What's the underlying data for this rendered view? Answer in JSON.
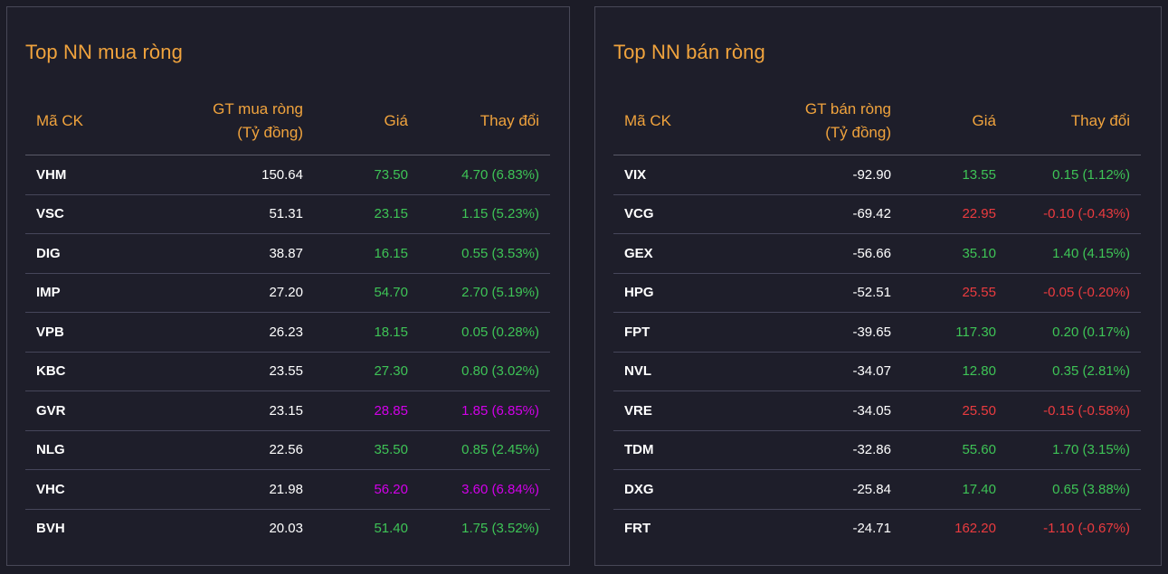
{
  "colors": {
    "up": "#3ec456",
    "down": "#eb3b3f",
    "ceiling": "#d200e9",
    "accent": "#f0a33d"
  },
  "buy": {
    "title": "Top NN mua ròng",
    "headers": {
      "code": "Mã CK",
      "value_line1": "GT mua ròng",
      "value_line2": "(Tỷ đồng)",
      "price": "Giá",
      "change": "Thay đổi"
    },
    "rows": [
      {
        "code": "VHM",
        "value": "150.64",
        "price": "73.50",
        "change": "4.70 (6.83%)",
        "trend": "up"
      },
      {
        "code": "VSC",
        "value": "51.31",
        "price": "23.15",
        "change": "1.15 (5.23%)",
        "trend": "up"
      },
      {
        "code": "DIG",
        "value": "38.87",
        "price": "16.15",
        "change": "0.55 (3.53%)",
        "trend": "up"
      },
      {
        "code": "IMP",
        "value": "27.20",
        "price": "54.70",
        "change": "2.70 (5.19%)",
        "trend": "up"
      },
      {
        "code": "VPB",
        "value": "26.23",
        "price": "18.15",
        "change": "0.05 (0.28%)",
        "trend": "up"
      },
      {
        "code": "KBC",
        "value": "23.55",
        "price": "27.30",
        "change": "0.80 (3.02%)",
        "trend": "up"
      },
      {
        "code": "GVR",
        "value": "23.15",
        "price": "28.85",
        "change": "1.85 (6.85%)",
        "trend": "ceil"
      },
      {
        "code": "NLG",
        "value": "22.56",
        "price": "35.50",
        "change": "0.85 (2.45%)",
        "trend": "up"
      },
      {
        "code": "VHC",
        "value": "21.98",
        "price": "56.20",
        "change": "3.60 (6.84%)",
        "trend": "ceil"
      },
      {
        "code": "BVH",
        "value": "20.03",
        "price": "51.40",
        "change": "1.75 (3.52%)",
        "trend": "up"
      }
    ]
  },
  "sell": {
    "title": "Top NN bán ròng",
    "headers": {
      "code": "Mã CK",
      "value_line1": "GT bán ròng",
      "value_line2": "(Tỷ đồng)",
      "price": "Giá",
      "change": "Thay đổi"
    },
    "rows": [
      {
        "code": "VIX",
        "value": "-92.90",
        "price": "13.55",
        "change": "0.15 (1.12%)",
        "trend": "up"
      },
      {
        "code": "VCG",
        "value": "-69.42",
        "price": "22.95",
        "change": "-0.10 (-0.43%)",
        "trend": "down"
      },
      {
        "code": "GEX",
        "value": "-56.66",
        "price": "35.10",
        "change": "1.40 (4.15%)",
        "trend": "up"
      },
      {
        "code": "HPG",
        "value": "-52.51",
        "price": "25.55",
        "change": "-0.05 (-0.20%)",
        "trend": "down"
      },
      {
        "code": "FPT",
        "value": "-39.65",
        "price": "117.30",
        "change": "0.20 (0.17%)",
        "trend": "up"
      },
      {
        "code": "NVL",
        "value": "-34.07",
        "price": "12.80",
        "change": "0.35 (2.81%)",
        "trend": "up"
      },
      {
        "code": "VRE",
        "value": "-34.05",
        "price": "25.50",
        "change": "-0.15 (-0.58%)",
        "trend": "down"
      },
      {
        "code": "TDM",
        "value": "-32.86",
        "price": "55.60",
        "change": "1.70 (3.15%)",
        "trend": "up"
      },
      {
        "code": "DXG",
        "value": "-25.84",
        "price": "17.40",
        "change": "0.65 (3.88%)",
        "trend": "up"
      },
      {
        "code": "FRT",
        "value": "-24.71",
        "price": "162.20",
        "change": "-1.10 (-0.67%)",
        "trend": "down"
      }
    ]
  }
}
